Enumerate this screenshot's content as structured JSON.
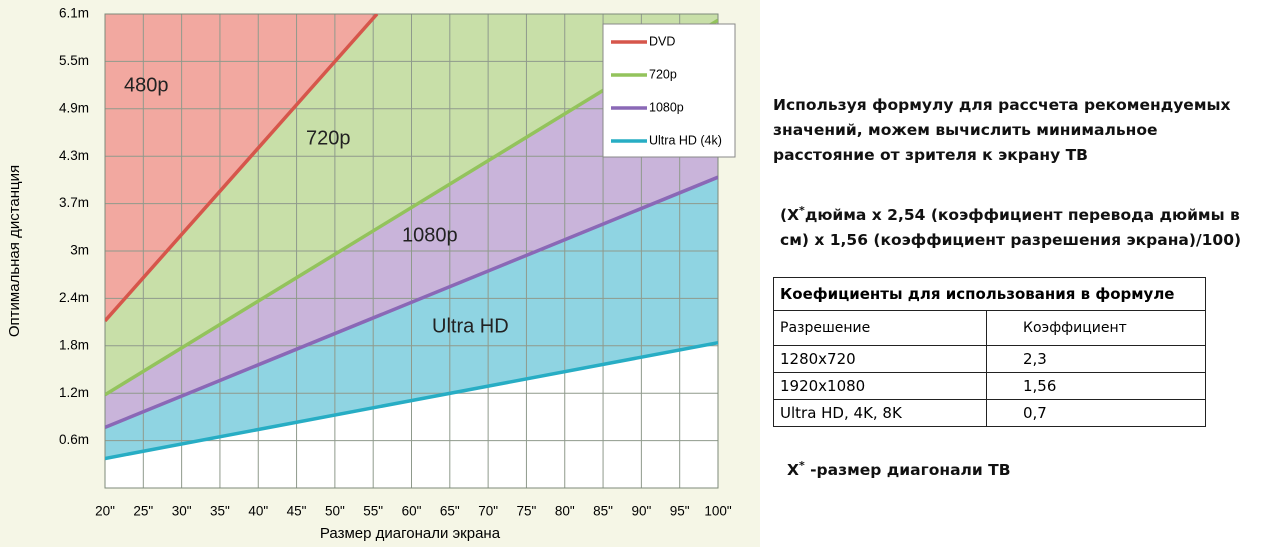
{
  "chart_data": {
    "type": "line",
    "xlabel": "Размер диагонали экрана",
    "ylabel": "Оптимальная дистанция",
    "xlim": [
      20,
      100
    ],
    "ylim": [
      0,
      6.1
    ],
    "xticks": [
      {
        "value": 20,
        "label": "20\""
      },
      {
        "value": 25,
        "label": "25\""
      },
      {
        "value": 30,
        "label": "30\""
      },
      {
        "value": 35,
        "label": "35\""
      },
      {
        "value": 40,
        "label": "40\""
      },
      {
        "value": 45,
        "label": "45\""
      },
      {
        "value": 50,
        "label": "50\""
      },
      {
        "value": 55,
        "label": "55\""
      },
      {
        "value": 60,
        "label": "60\""
      },
      {
        "value": 65,
        "label": "65\""
      },
      {
        "value": 70,
        "label": "70\""
      },
      {
        "value": 75,
        "label": "75\""
      },
      {
        "value": 80,
        "label": "80\""
      },
      {
        "value": 85,
        "label": "85\""
      },
      {
        "value": 90,
        "label": "90\""
      },
      {
        "value": 95,
        "label": "95\""
      },
      {
        "value": 100,
        "label": "100\""
      }
    ],
    "yticks": [
      {
        "value": 0.61,
        "label": "0.6m"
      },
      {
        "value": 1.22,
        "label": "1.2m"
      },
      {
        "value": 1.83,
        "label": "1.8m"
      },
      {
        "value": 2.44,
        "label": "2.4m"
      },
      {
        "value": 3.05,
        "label": "3m"
      },
      {
        "value": 3.66,
        "label": "3.7m"
      },
      {
        "value": 4.27,
        "label": "4.3m"
      },
      {
        "value": 4.88,
        "label": "4.9m"
      },
      {
        "value": 5.49,
        "label": "5.5m"
      },
      {
        "value": 6.1,
        "label": "6.1m"
      }
    ],
    "grid": true,
    "legend": "upper right",
    "plot_color": "#f2a8a0",
    "series": [
      {
        "name": "DVD",
        "color": "#d6564b",
        "fill": "#c8dfa8",
        "x": [
          20,
          55.5
        ],
        "values": [
          2.15,
          6.1
        ]
      },
      {
        "name": "720p",
        "color": "#93c35c",
        "fill": "#c9b4da",
        "x": [
          20,
          100
        ],
        "values": [
          1.2,
          6.02
        ]
      },
      {
        "name": "1080p",
        "color": "#8a68b6",
        "fill": "#8fd4e2",
        "x": [
          20,
          100
        ],
        "values": [
          0.78,
          4.0
        ]
      },
      {
        "name": "Ultra HD (4k)",
        "color": "#27adc4",
        "fill": "#ffffff",
        "x": [
          20,
          100
        ],
        "values": [
          0.38,
          1.87
        ]
      }
    ],
    "annotations": [
      "480p",
      "720p",
      "1080p",
      "Ultra HD"
    ]
  },
  "text": {
    "intro": [
      "Используя формулу для рассчета рекомендуемых",
      "значений, можем вычислить минимальное",
      "расстояние от зрителя к экрану ТВ"
    ],
    "formula": {
      "prefix": "(X",
      "sup": "*",
      "rest": "дюйма х 2,54 (коэффициент перевода дюймы в см) х 1,56 (коэффициент разрешения экрана)/100)"
    },
    "footnote": {
      "prefix": "X",
      "sup": "*",
      "rest": " -размер диагонали ТВ"
    }
  },
  "table": {
    "title": "Коефициенты для использования в формуле",
    "header": [
      "Разрешение",
      "Коэффициент"
    ],
    "rows": [
      [
        "1280х720",
        "2,3"
      ],
      [
        "1920х1080",
        "1,56"
      ],
      [
        "Ultra HD, 4K, 8K",
        "0,7"
      ]
    ]
  }
}
